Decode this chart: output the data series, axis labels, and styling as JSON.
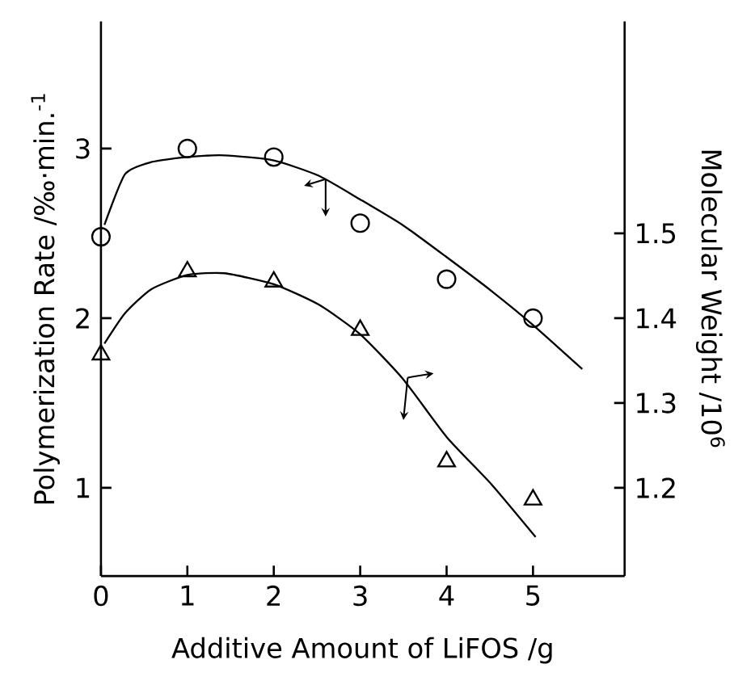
{
  "chart_data": {
    "type": "scatter",
    "xlabel": "Additive Amount of LiFOS /g",
    "ylabel": "Polymerization Rate /‰·min.$^{-1}$",
    "y2label": "Molecular Weight /10$^{6}$",
    "xlim": [
      0,
      6.06
    ],
    "xticks": [
      0,
      1,
      2,
      3,
      4,
      5
    ],
    "ylim": [
      0.48,
      3.75
    ],
    "yticks": [
      1,
      2,
      3
    ],
    "y2lim": [
      1.096,
      1.75
    ],
    "y2ticks": [
      1.2,
      1.3,
      1.4,
      1.5
    ],
    "series": [
      {
        "marker": "circle",
        "color": "#000000",
        "x": [
          0,
          1,
          2,
          3,
          4,
          5
        ],
        "values": [
          2.48,
          3.0,
          2.95,
          2.56,
          2.23,
          2.0
        ]
      },
      {
        "marker": "triangle",
        "color": "#000000",
        "axis": "y2",
        "x": [
          0,
          1,
          2,
          3,
          4,
          5
        ],
        "values": [
          1.357,
          1.455,
          1.443,
          1.386,
          1.231,
          1.186
        ]
      },
      {
        "type": "line",
        "marker": "none",
        "color": "#000000",
        "x": [
          0.04,
          0.28,
          0.58,
          1.0,
          1.43,
          2.0,
          2.52,
          3.0,
          3.49,
          4.0,
          4.52,
          5.0,
          5.57
        ],
        "values": [
          2.55,
          2.85,
          2.92,
          2.95,
          2.96,
          2.93,
          2.84,
          2.7,
          2.55,
          2.36,
          2.16,
          1.96,
          1.7
        ]
      },
      {
        "type": "line",
        "marker": "none",
        "color": "#000000",
        "axis": "y2",
        "x": [
          0.04,
          0.28,
          0.58,
          1.0,
          1.43,
          2.0,
          2.52,
          3.0,
          3.49,
          4.0,
          4.52,
          5.03
        ],
        "values": [
          1.37,
          1.406,
          1.434,
          1.451,
          1.453,
          1.44,
          1.416,
          1.381,
          1.329,
          1.26,
          1.204,
          1.142
        ]
      }
    ]
  }
}
